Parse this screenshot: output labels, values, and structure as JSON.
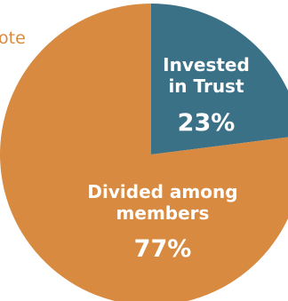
{
  "fragment_text": "ote",
  "chart_data": {
    "type": "pie",
    "title": "",
    "slices": [
      {
        "label_lines": [
          "Invested",
          "in Trust"
        ],
        "value": 23,
        "value_label": "23%",
        "color": "#3a7187"
      },
      {
        "label_lines": [
          "Divided among",
          "members"
        ],
        "value": 77,
        "value_label": "77%",
        "color": "#d78a40"
      }
    ],
    "legend": "none",
    "label_color": "#ffffff"
  }
}
